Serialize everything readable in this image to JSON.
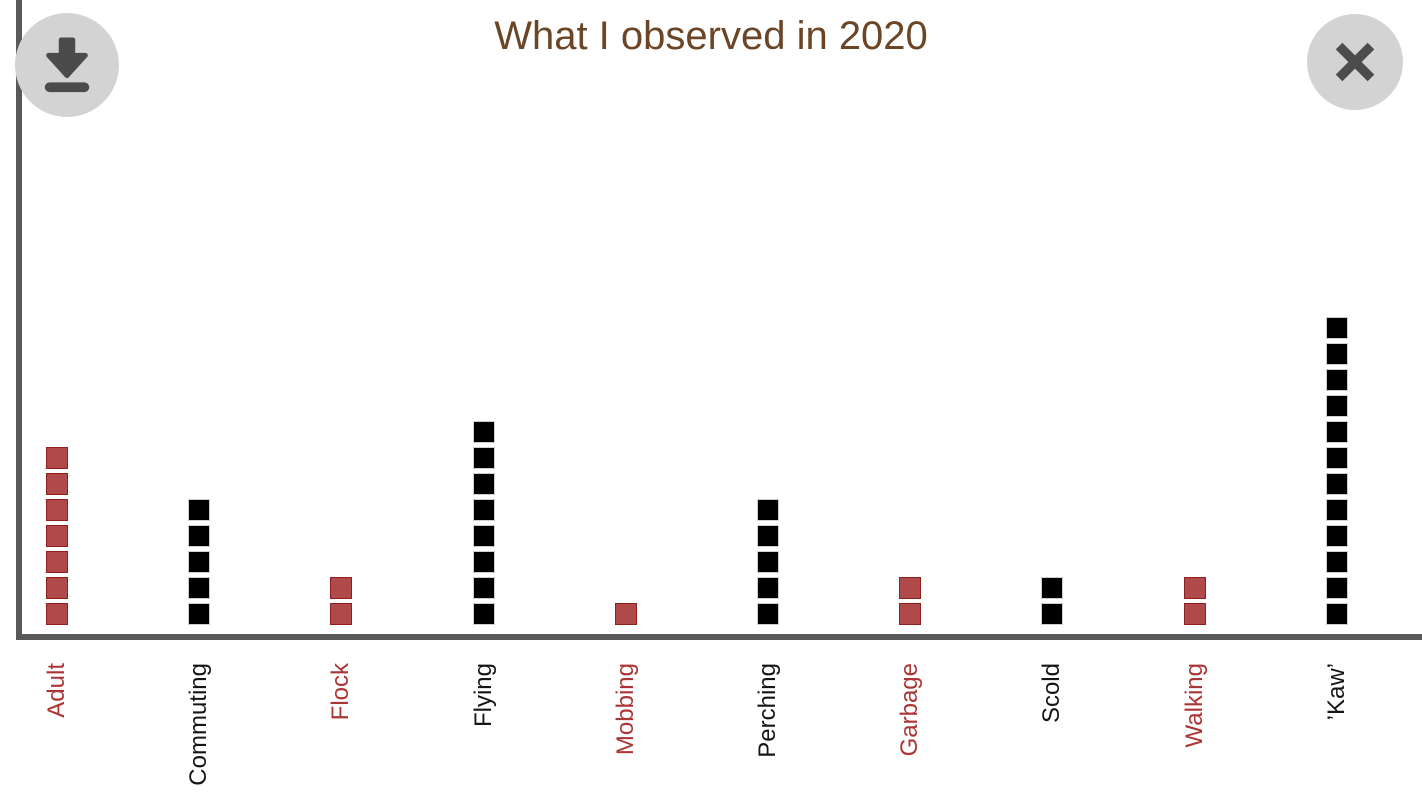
{
  "chart_data": {
    "type": "bar",
    "variant": "unit_square_pictograph",
    "title": "What I observed in 2020",
    "categories": [
      "Adult",
      "Commuting",
      "Flock",
      "Flying",
      "Mobbing",
      "Perching",
      "Garbage",
      "Scold",
      "Walking",
      "’Kaw’"
    ],
    "values": [
      7,
      5,
      2,
      8,
      1,
      5,
      2,
      2,
      2,
      12
    ],
    "series_colors": [
      "red",
      "black",
      "red",
      "black",
      "red",
      "black",
      "red",
      "black",
      "red",
      "black"
    ],
    "unit_per_square": 1,
    "ylim": [
      0,
      12
    ],
    "x_tick_rotation": 90,
    "grid": "off",
    "legend": "none",
    "colors": {
      "red_square": "#b04a4a",
      "red_square_border": "#8f2020",
      "black_square": "#000000",
      "black_square_border": "#cfcfcf",
      "red_label": "#ab3535",
      "black_label": "#151515",
      "title": "#6b4626",
      "axis": "#595959",
      "button_bg": "#d3d3d3",
      "button_glyph": "#4b4b4b"
    }
  },
  "toolbar": {
    "icons": {
      "download": "download-icon",
      "close": "close-icon"
    }
  }
}
